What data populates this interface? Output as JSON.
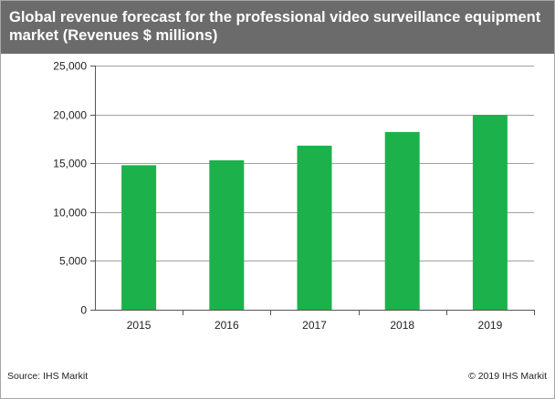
{
  "colors": {
    "bar": "#1db14b",
    "title_bg": "#6b6b6b",
    "grid": "#a0a0a0",
    "axis": "#555555"
  },
  "chart_data": {
    "type": "bar",
    "title": "Global revenue forecast for the professional video surveillance equipment market (Revenues $ millions)",
    "categories": [
      "2015",
      "2016",
      "2017",
      "2018",
      "2019"
    ],
    "values": [
      14800,
      15300,
      16800,
      18200,
      19950
    ],
    "ylim": [
      0,
      25000
    ],
    "yticks": [
      0,
      5000,
      10000,
      15000,
      20000,
      25000
    ],
    "ytick_labels": [
      "0",
      "5,000",
      "10,000",
      "15,000",
      "20,000",
      "25,000"
    ],
    "grid": true,
    "legend": false
  },
  "footer": {
    "source": "Source: IHS Markit",
    "copyright": "© 2019 IHS Markit"
  }
}
